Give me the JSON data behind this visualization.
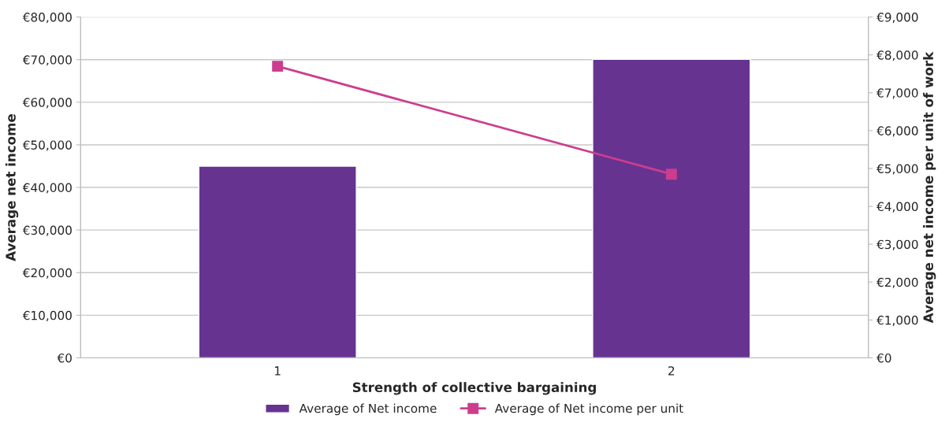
{
  "chart_data": {
    "type": "bar",
    "xlabel": "Strength of collective bargaining",
    "ylabel": "Average net income",
    "y2label": "Average net income per unit of work",
    "categories": [
      "1",
      "2"
    ],
    "series": [
      {
        "name": "Average of Net income",
        "color": "#673391",
        "values": [
          45000,
          70100
        ]
      },
      {
        "name": "Average of Net income per unit",
        "type": "line",
        "axis": "y2",
        "color": "#cc3d8e",
        "marker": "square",
        "values": [
          7700,
          4850
        ]
      }
    ],
    "ylim": [
      0,
      80000
    ],
    "yticks": [
      {
        "value": 0,
        "label": "€0"
      },
      {
        "value": 10000,
        "label": "€10,000"
      },
      {
        "value": 20000,
        "label": "€20,000"
      },
      {
        "value": 30000,
        "label": "€30,000"
      },
      {
        "value": 40000,
        "label": "€40,000"
      },
      {
        "value": 50000,
        "label": "€50,000"
      },
      {
        "value": 60000,
        "label": "€60,000"
      },
      {
        "value": 70000,
        "label": "€70,000"
      },
      {
        "value": 80000,
        "label": "€80,000"
      }
    ],
    "y2lim": [
      0,
      9000
    ],
    "y2ticks": [
      {
        "value": 0,
        "label": "€0"
      },
      {
        "value": 1000,
        "label": "€1,000"
      },
      {
        "value": 2000,
        "label": "€2,000"
      },
      {
        "value": 3000,
        "label": "€3,000"
      },
      {
        "value": 4000,
        "label": "€4,000"
      },
      {
        "value": 5000,
        "label": "€5,000"
      },
      {
        "value": 6000,
        "label": "€6,000"
      },
      {
        "value": 7000,
        "label": "€7,000"
      },
      {
        "value": 8000,
        "label": "€8,000"
      },
      {
        "value": 9000,
        "label": "€9,000"
      }
    ],
    "grid": "y",
    "legend": "bottom"
  }
}
